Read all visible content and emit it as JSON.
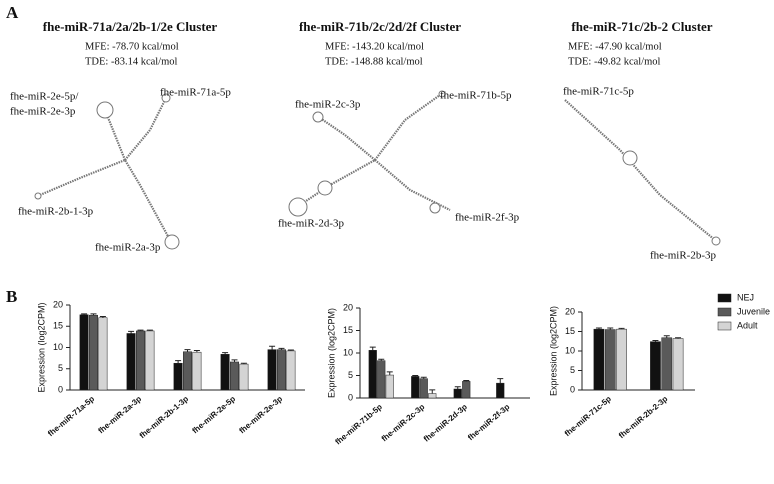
{
  "panel_a": {
    "label": "A",
    "clusters": [
      {
        "title": "fhe-miR-71a/2a/2b-1/2e Cluster",
        "mfe": "MFE: -78.70 kcal/mol",
        "tde": "TDE: -83.14 kcal/mol",
        "labels": [
          "fhe-miR-2e-5p/",
          "fhe-miR-2e-3p",
          "fhe-miR-71a-5p",
          "fhe-miR-2b-1-3p",
          "fhe-miR-2a-3p"
        ]
      },
      {
        "title": "fhe-miR-71b/2c/2d/2f Cluster",
        "mfe": "MFE: -143.20 kcal/mol",
        "tde": "TDE: -148.88 kcal/mol",
        "labels": [
          "fhe-miR-2c-3p",
          "fhe-miR-71b-5p",
          "fhe-miR-2f-3p",
          "fhe-miR-2d-3p"
        ]
      },
      {
        "title": "fhe-miR-71c/2b-2 Cluster",
        "mfe": "MFE: -47.90 kcal/mol",
        "tde": "TDE: -49.82 kcal/mol",
        "labels": [
          "fhe-miR-71c-5p",
          "fhe-miR-2b-3p"
        ]
      }
    ]
  },
  "panel_b": {
    "label": "B"
  },
  "chart_data": [
    {
      "type": "bar",
      "y_label": "Expression  (log2CPM)",
      "categories": [
        "fhe-miR-71a-5p",
        "fhe-miR-2a-3p",
        "fhe-miR-2b-1-3p",
        "fhe-miR-2e-5p",
        "fhe-miR-2e-3p"
      ],
      "series": [
        {
          "color": "#111111",
          "values": [
            17.7,
            13.3,
            6.3,
            8.4,
            9.5
          ],
          "errors": [
            0.2,
            0.5,
            0.6,
            0.4,
            0.8
          ]
        },
        {
          "color": "#5a5a5a",
          "values": [
            17.6,
            13.9,
            9.0,
            6.6,
            9.5
          ],
          "errors": [
            0.3,
            0.2,
            0.5,
            0.5,
            0.3
          ]
        },
        {
          "color": "#d4d4d4",
          "values": [
            17.0,
            13.9,
            8.9,
            6.1,
            9.2
          ],
          "errors": [
            0.3,
            0.2,
            0.4,
            0.2,
            0.2
          ]
        }
      ],
      "ylim": [
        0,
        20
      ],
      "yticks": [
        0,
        5,
        10,
        15,
        20
      ]
    },
    {
      "type": "bar",
      "y_label": "Expression  (log2CPM)",
      "categories": [
        "fhe-miR-71b-5p",
        "fhe-miR-2c-3p",
        "fhe-miR-2d-3p",
        "fhe-miR-2f-3p"
      ],
      "series": [
        {
          "color": "#111111",
          "values": [
            10.6,
            4.8,
            2.0,
            3.3
          ],
          "errors": [
            0.7,
            0.2,
            0.5,
            1.0
          ]
        },
        {
          "color": "#5a5a5a",
          "values": [
            8.3,
            4.3,
            3.7,
            0
          ],
          "errors": [
            0.3,
            0.3,
            0.2,
            0
          ]
        },
        {
          "color": "#d4d4d4",
          "values": [
            5.1,
            1.0,
            0,
            0
          ],
          "errors": [
            0.7,
            0.8,
            0,
            0
          ]
        }
      ],
      "ylim": [
        0,
        20
      ],
      "yticks": [
        0,
        5,
        10,
        15,
        20
      ]
    },
    {
      "type": "bar",
      "y_label": "Expression  (log2CPM)",
      "legend": "right",
      "categories": [
        "fhe-miR-71c-5p",
        "fhe-miR-2b-2-3p"
      ],
      "series": [
        {
          "name": "NEJ",
          "color": "#111111",
          "values": [
            15.6,
            12.4
          ],
          "errors": [
            0.3,
            0.3
          ]
        },
        {
          "name": "Juvenile",
          "color": "#5a5a5a",
          "values": [
            15.5,
            13.4
          ],
          "errors": [
            0.4,
            0.5
          ]
        },
        {
          "name": "Adult",
          "color": "#d4d4d4",
          "values": [
            15.6,
            13.2
          ],
          "errors": [
            0.2,
            0.2
          ]
        }
      ],
      "ylim": [
        0,
        20
      ],
      "yticks": [
        0,
        5,
        10,
        15,
        20
      ]
    }
  ]
}
